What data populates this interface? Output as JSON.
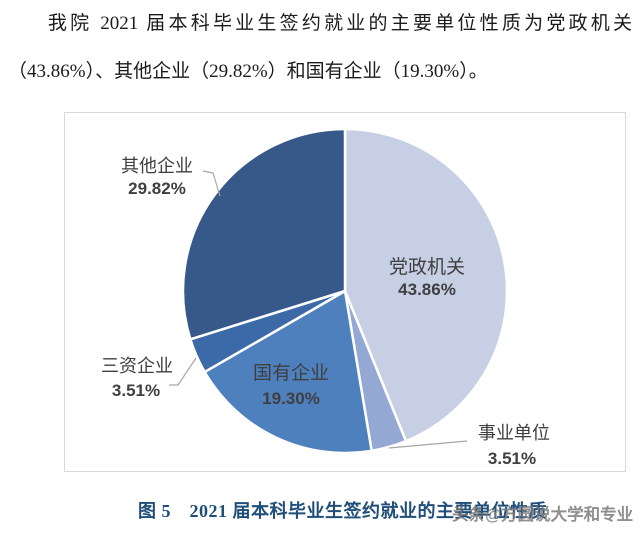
{
  "intro": {
    "line1": "我院 2021 届本科毕业生签约就业的主要单位性质为党政机关",
    "line2": "（43.86%）、其他企业（29.82%）和国有企业（19.30%）。"
  },
  "caption": "图 5　2021 届本科毕业生签约就业的主要单位性质",
  "watermark": "头条@方圆说大学和专业",
  "colors": {
    "caption_blue": "#1f4e79",
    "label_text": "#3f3f3f",
    "leader_line": "#a6a6a6",
    "panel_border": "#d9d9d9",
    "slice_border": "#ffffff"
  },
  "chart_data": {
    "type": "pie",
    "title": "",
    "start_angle_deg": 0,
    "direction": "clockwise",
    "legend": "none",
    "slices": [
      {
        "label": "党政机关",
        "value": 43.86,
        "color": "#C6CFE4",
        "label_placement": "inside"
      },
      {
        "label": "事业单位",
        "value": 3.51,
        "color": "#93A9D4",
        "label_placement": "outside"
      },
      {
        "label": "国有企业",
        "value": 19.3,
        "color": "#4E80BE",
        "label_placement": "inside"
      },
      {
        "label": "三资企业",
        "value": 3.51,
        "color": "#3C69A8",
        "label_placement": "outside"
      },
      {
        "label": "其他企业",
        "value": 29.82,
        "color": "#365989",
        "label_placement": "outside"
      }
    ]
  }
}
